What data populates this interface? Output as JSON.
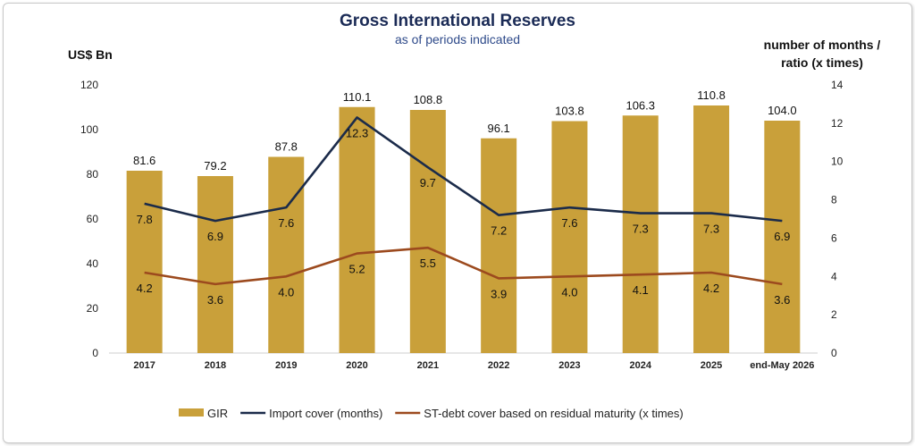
{
  "chart_data": {
    "type": "bar",
    "title": "Gross International Reserves",
    "subtitle": "as of periods indicated",
    "ylabel_left": "US$ Bn",
    "ylabel_right_line1": "number of months /",
    "ylabel_right_line2": "ratio (x times)",
    "categories": [
      "2017",
      "2018",
      "2019",
      "2020",
      "2021",
      "2022",
      "2023",
      "2024",
      "2025",
      "end-May 2026"
    ],
    "ylim_left": [
      0,
      120
    ],
    "yticks_left": [
      0,
      20,
      40,
      60,
      80,
      100,
      120
    ],
    "ylim_right": [
      0,
      14
    ],
    "yticks_right": [
      0,
      2,
      4,
      6,
      8,
      10,
      12,
      14
    ],
    "grid": false,
    "legend_position": "bottom",
    "series": [
      {
        "name": "GIR",
        "kind": "bar",
        "axis": "left",
        "color": "#c9a03a",
        "values": [
          81.6,
          79.2,
          87.8,
          110.1,
          108.8,
          96.1,
          103.8,
          106.3,
          110.8,
          104.0
        ],
        "labels": [
          "81.6",
          "79.2",
          "87.8",
          "110.1",
          "108.8",
          "96.1",
          "103.8",
          "106.3",
          "110.8",
          "104.0"
        ]
      },
      {
        "name": "Import cover (months)",
        "kind": "line",
        "axis": "right",
        "color": "#1b2b4a",
        "values": [
          7.8,
          6.9,
          7.6,
          12.3,
          9.7,
          7.2,
          7.6,
          7.3,
          7.3,
          6.9
        ],
        "labels": [
          "7.8",
          "6.9",
          "7.6",
          "12.3",
          "9.7",
          "7.2",
          "7.6",
          "7.3",
          "7.3",
          "6.9"
        ]
      },
      {
        "name": "ST-debt cover based on residual maturity (x times)",
        "kind": "line",
        "axis": "right",
        "color": "#9c4a1e",
        "values": [
          4.2,
          3.6,
          4.0,
          5.2,
          5.5,
          3.9,
          4.0,
          4.1,
          4.2,
          3.6
        ],
        "labels": [
          "4.2",
          "3.6",
          "4.0",
          "5.2",
          "5.5",
          "3.9",
          "4.0",
          "4.1",
          "4.2",
          "3.6"
        ]
      }
    ]
  }
}
